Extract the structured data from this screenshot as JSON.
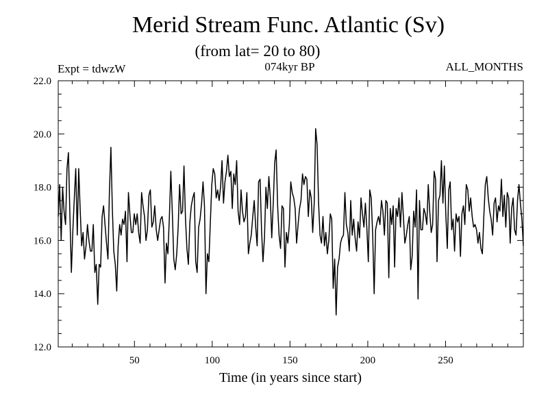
{
  "chart_data": {
    "type": "line",
    "title": "Merid Stream Func. Atlantic (Sv)",
    "subtitle": "(from lat= 20 to 80)",
    "annotations": {
      "left": "Expt = tdwzW",
      "center": "074kyr BP",
      "right": "ALL_MONTHS"
    },
    "xlabel": "Time (in years since start)",
    "ylabel": "",
    "xlim": [
      1,
      300
    ],
    "ylim": [
      12.0,
      22.0
    ],
    "xticks": [
      50,
      100,
      150,
      200,
      250
    ],
    "xtick_labels": [
      "50",
      "100",
      "150",
      "200",
      "250"
    ],
    "yticks": [
      12.0,
      14.0,
      16.0,
      18.0,
      20.0,
      22.0
    ],
    "ytick_labels": [
      "12.0",
      "14.0",
      "16.0",
      "18.0",
      "20.0",
      "22.0"
    ],
    "grid": false,
    "series": [
      {
        "values": [
          16.9,
          18.1,
          16.0,
          18.0,
          17.1,
          16.6,
          18.7,
          19.3,
          16.9,
          14.8,
          16.4,
          17.6,
          18.7,
          16.2,
          18.7,
          17.2,
          15.8,
          16.3,
          15.3,
          15.8,
          16.6,
          16.0,
          15.6,
          15.6,
          16.6,
          14.8,
          15.1,
          13.6,
          15.1,
          15.0,
          16.9,
          17.3,
          16.6,
          15.9,
          15.3,
          17.8,
          19.5,
          17.2,
          15.6,
          15.1,
          14.1,
          15.8,
          16.6,
          16.2,
          16.8,
          16.6,
          17.1,
          15.2,
          17.8,
          17.0,
          16.3,
          16.3,
          17.0,
          16.6,
          17.0,
          16.3,
          15.9,
          17.8,
          17.3,
          16.9,
          16.0,
          16.4,
          17.7,
          17.9,
          16.5,
          16.7,
          17.3,
          16.4,
          16.0,
          16.4,
          16.8,
          16.9,
          16.5,
          14.4,
          15.9,
          15.5,
          16.9,
          18.6,
          17.1,
          15.3,
          14.9,
          15.5,
          16.5,
          18.1,
          17.0,
          17.1,
          18.8,
          16.8,
          15.7,
          15.1,
          16.7,
          17.3,
          17.6,
          17.8,
          15.2,
          14.8,
          16.5,
          16.8,
          17.4,
          18.2,
          17.3,
          14.0,
          15.5,
          15.2,
          16.7,
          18.1,
          18.7,
          18.5,
          17.6,
          17.9,
          17.5,
          18.0,
          19.0,
          17.4,
          18.2,
          18.6,
          19.2,
          18.4,
          18.6,
          17.2,
          18.5,
          18.1,
          19.0,
          17.1,
          16.6,
          17.9,
          17.1,
          16.7,
          16.9,
          17.8,
          15.5,
          15.9,
          16.2,
          16.9,
          17.5,
          16.5,
          15.8,
          18.2,
          18.3,
          16.4,
          15.2,
          16.1,
          18.0,
          17.2,
          18.4,
          17.6,
          16.1,
          17.4,
          18.9,
          19.4,
          17.3,
          16.2,
          15.7,
          17.3,
          17.2,
          15.0,
          16.3,
          15.9,
          16.6,
          18.2,
          17.8,
          17.6,
          17.2,
          15.9,
          16.6,
          17.2,
          17.5,
          18.5,
          18.1,
          18.4,
          18.3,
          16.9,
          17.9,
          17.6,
          16.3,
          17.4,
          20.2,
          19.6,
          17.4,
          16.2,
          15.9,
          16.9,
          15.8,
          16.3,
          15.5,
          16.0,
          17.0,
          16.8,
          14.2,
          15.3,
          13.2,
          15.0,
          15.3,
          15.9,
          16.1,
          16.2,
          17.8,
          16.6,
          16.3,
          15.6,
          17.5,
          16.2,
          16.8,
          16.1,
          15.6,
          16.7,
          16.1,
          17.6,
          17.0,
          16.5,
          17.4,
          16.5,
          15.2,
          17.9,
          17.6,
          16.2,
          14.0,
          16.4,
          16.7,
          16.9,
          16.6,
          17.5,
          17.1,
          16.2,
          17.5,
          17.4,
          14.6,
          17.2,
          16.6,
          17.3,
          15.0,
          17.2,
          16.9,
          17.6,
          16.5,
          17.8,
          16.9,
          15.9,
          16.2,
          16.6,
          16.9,
          14.9,
          15.4,
          17.1,
          16.5,
          17.9,
          13.8,
          17.5,
          16.4,
          16.4,
          17.2,
          17.0,
          16.6,
          18.1,
          17.1,
          16.3,
          16.6,
          18.6,
          18.3,
          15.2,
          17.5,
          17.7,
          19.0,
          17.4,
          18.8,
          17.0,
          15.7,
          17.9,
          18.2,
          16.4,
          16.8,
          15.6,
          17.0,
          16.7,
          16.9,
          15.4,
          17.0,
          17.3,
          16.6,
          18.1,
          17.9,
          17.1,
          17.6,
          16.9,
          16.5,
          16.6,
          16.4,
          15.9,
          16.3,
          15.7,
          15.5,
          16.9,
          18.1,
          18.4,
          17.6,
          17.1,
          16.8,
          16.2,
          17.4,
          17.6,
          16.7,
          17.3,
          17.1,
          18.3,
          16.9,
          17.7,
          16.5,
          17.8,
          17.6,
          15.9,
          17.2,
          17.6,
          16.4,
          16.2,
          17.5,
          18.1,
          17.4,
          16.8,
          15.8
        ]
      }
    ]
  }
}
